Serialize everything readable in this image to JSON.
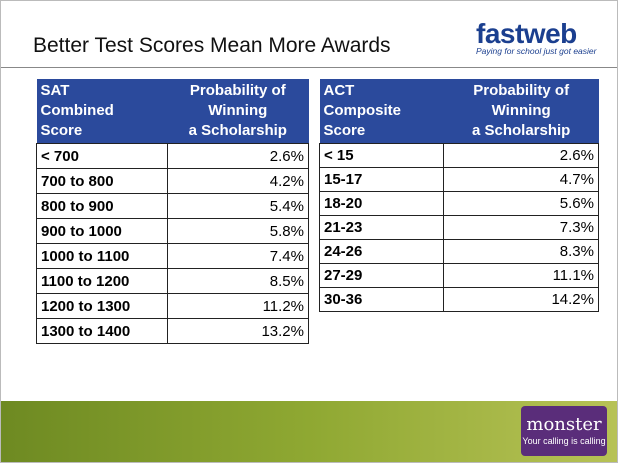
{
  "header": {
    "title": "Better Test Scores Mean More Awards",
    "logo": "fastweb",
    "tagline": "Paying for school just got easier"
  },
  "tables": [
    {
      "columns": [
        [
          "SAT",
          "Combined",
          "Score"
        ],
        [
          "Probability of",
          "Winning",
          "a Scholarship"
        ]
      ],
      "rows": [
        [
          "< 700",
          "2.6%"
        ],
        [
          "700 to 800",
          "4.2%"
        ],
        [
          "800 to 900",
          "5.4%"
        ],
        [
          "900 to 1000",
          "5.8%"
        ],
        [
          "1000 to 1100",
          "7.4%"
        ],
        [
          "1100 to 1200",
          "8.5%"
        ],
        [
          "1200 to 1300",
          "11.2%"
        ],
        [
          "1300 to 1400",
          "13.2%"
        ]
      ]
    },
    {
      "columns": [
        [
          "ACT",
          "Composite",
          "Score"
        ],
        [
          "Probability of",
          "Winning",
          "a Scholarship"
        ]
      ],
      "rows": [
        [
          "< 15",
          "2.6%"
        ],
        [
          "15-17",
          "4.7%"
        ],
        [
          "18-20",
          "5.6%"
        ],
        [
          "21-23",
          "7.3%"
        ],
        [
          "24-26",
          "8.3%"
        ],
        [
          "27-29",
          "11.1%"
        ],
        [
          "30-36",
          "14.2%"
        ]
      ]
    }
  ],
  "footer": {
    "logo": "monster",
    "tagline": "Your calling is calling"
  }
}
